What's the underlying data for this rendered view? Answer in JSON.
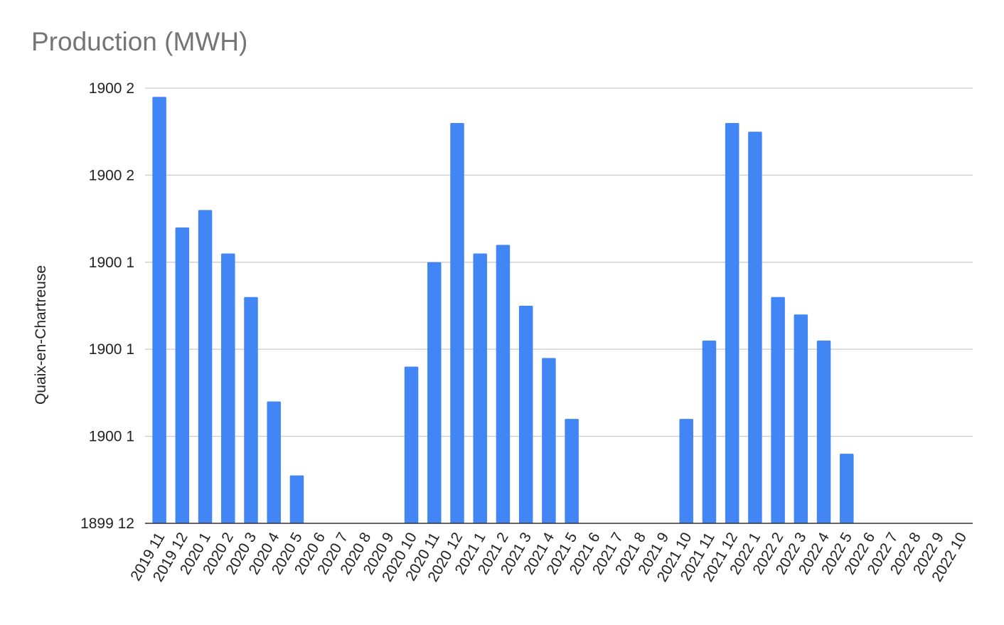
{
  "chart_data": {
    "type": "bar",
    "title": "Production (MWH)",
    "xlabel": "",
    "ylabel": "Quaix-en-Chartreuse",
    "y_ticks": [
      "1899 12",
      "1900 1",
      "1900 1",
      "1900 1",
      "1900 2",
      "1900 2"
    ],
    "ylim": [
      0,
      50
    ],
    "grid": true,
    "legend": "none",
    "bar_color": "#4285f4",
    "categories": [
      "2019 11",
      "2019 12",
      "2020 1",
      "2020 2",
      "2020 3",
      "2020 4",
      "2020 5",
      "2020 6",
      "2020 7",
      "2020 8",
      "2020 9",
      "2020 10",
      "2020 11",
      "2020 12",
      "2021 1",
      "2021 2",
      "2021 3",
      "2021 4",
      "2021 5",
      "2021 6",
      "2021 7",
      "2021 8",
      "2021 9",
      "2021 10",
      "2021 11",
      "2021 12",
      "2022 1",
      "2022 2",
      "2022 3",
      "2022 4",
      "2022 5",
      "2022 6",
      "2022 7",
      "2022 8",
      "2022 9",
      "2022 10"
    ],
    "values": [
      49,
      34,
      36,
      31,
      26,
      14,
      5.5,
      0,
      0,
      0,
      0,
      18,
      30,
      46,
      31,
      32,
      25,
      19,
      12,
      0,
      0,
      0,
      0,
      12,
      21,
      46,
      45,
      26,
      24,
      21,
      8,
      0,
      0,
      0,
      0,
      0
    ]
  }
}
